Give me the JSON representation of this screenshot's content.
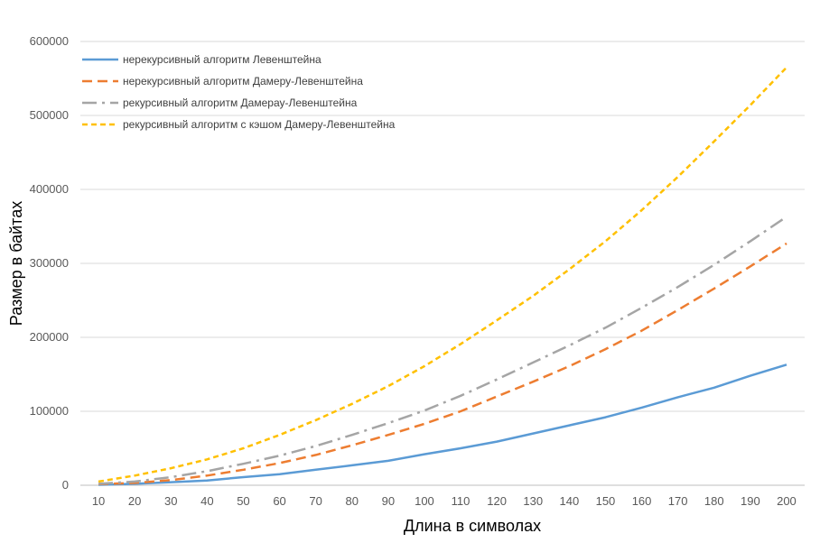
{
  "chart_data": {
    "type": "line",
    "title": "",
    "xlabel": "Длина в символах",
    "ylabel": "Размер в байтах",
    "categories": [
      10,
      20,
      30,
      40,
      50,
      60,
      70,
      80,
      90,
      100,
      110,
      120,
      130,
      140,
      150,
      160,
      170,
      180,
      190,
      200
    ],
    "y_ticks": [
      "0",
      "100000",
      "200000",
      "300000",
      "400000",
      "500000",
      "600000"
    ],
    "ylim": [
      0,
      600000
    ],
    "grid": "horizontal",
    "legend_position": "top-left",
    "series": [
      {
        "name": "нерекурсивный алгоритм Левенштейна",
        "color": "#5B9BD5",
        "style": "solid",
        "values": [
          600,
          2000,
          4200,
          6500,
          11000,
          15000,
          21000,
          27000,
          33000,
          42000,
          50000,
          59000,
          70000,
          81000,
          92000,
          105000,
          119000,
          132000,
          148000,
          163000
        ]
      },
      {
        "name": "нерекурсивный алгоритм Дамеру-Левенштейна",
        "color": "#ED7D31",
        "style": "dash",
        "values": [
          1500,
          3200,
          7000,
          13000,
          21000,
          30000,
          41000,
          54000,
          68000,
          83000,
          100000,
          120000,
          140000,
          161000,
          184000,
          209000,
          237000,
          266000,
          296000,
          327000
        ]
      },
      {
        "name": "рекурсивный алгоритм Дамерау-Левенштейна",
        "color": "#A5A5A5",
        "style": "dashdot",
        "values": [
          2000,
          5000,
          11000,
          19000,
          29000,
          40000,
          53000,
          68000,
          84000,
          101000,
          121000,
          143000,
          166000,
          189000,
          213000,
          240000,
          268000,
          298000,
          330000,
          363000
        ]
      },
      {
        "name": "рекурсивный алгоритм с кэшом Дамеру-Левенштейна",
        "color": "#FFC000",
        "style": "shortdash",
        "values": [
          5000,
          13000,
          23000,
          35000,
          50000,
          68000,
          88000,
          110000,
          134000,
          161000,
          191000,
          223000,
          256000,
          292000,
          330000,
          372000,
          417000,
          465000,
          514000,
          565000
        ]
      }
    ]
  }
}
